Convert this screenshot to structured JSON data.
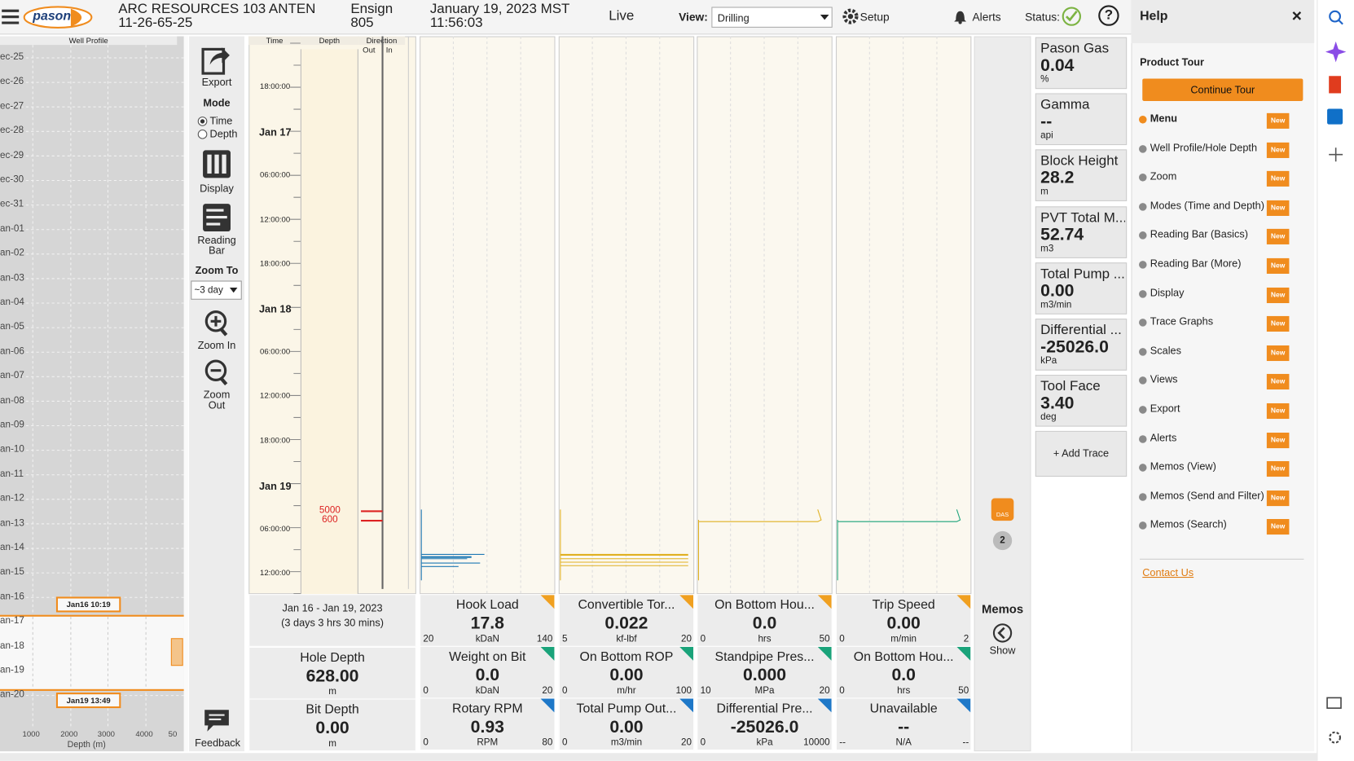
{
  "header": {
    "logo": "pason",
    "well": "ARC RESOURCES 103 ANTEN 11-26-65-25",
    "rig": "Ensign 805",
    "datetime": "January 19, 2023 MST 11:56:03",
    "mode": "Live",
    "view_label": "View:",
    "view": "Drilling",
    "setup": "Setup",
    "alerts": "Alerts",
    "status": "Status:",
    "help_icon": "?"
  },
  "well_profile": {
    "title": "Well Profile",
    "dates": [
      "ec-25",
      "ec-26",
      "ec-27",
      "ec-28",
      "ec-29",
      "ec-30",
      "ec-31",
      "an-01",
      "an-02",
      "an-03",
      "an-04",
      "an-05",
      "an-06",
      "an-07",
      "an-08",
      "an-09",
      "an-10",
      "an-11",
      "an-12",
      "an-13",
      "an-14",
      "an-15",
      "an-16",
      "an-17",
      "an-18",
      "an-19",
      "an-20"
    ],
    "x_ticks": [
      "1000",
      "2000",
      "3000",
      "4000",
      "50"
    ],
    "x_label": "Depth (m)",
    "markers": [
      "Jan16 10:19",
      "Jan19 13:49"
    ]
  },
  "toolbar": {
    "export": "Export",
    "mode": "Mode",
    "mode_options": [
      "Time",
      "Depth"
    ],
    "display": "Display",
    "reading_bar": "Reading Bar",
    "zoom_to": "Zoom To",
    "zoom_value": "~3 day",
    "zoom_in": "Zoom In",
    "zoom_out": "Zoom Out",
    "feedback": "Feedback"
  },
  "track": {
    "headers": [
      "Time",
      "Depth",
      "Direction"
    ],
    "direction_sub": [
      "Out",
      "In"
    ],
    "time_labels": [
      "18:00:00",
      "Jan 17",
      "06:00:00",
      "12:00:00",
      "18:00:00",
      "Jan 18",
      "06:00:00",
      "12:00:00",
      "18:00:00",
      "Jan 19",
      "06:00:00",
      "12:00:00"
    ],
    "depth_labels": [
      "5000",
      "600"
    ]
  },
  "summary": {
    "range": "Jan 16 - Jan 19, 2023",
    "duration": "(3 days 3 hrs 30 mins)",
    "readouts": [
      {
        "name": "Hole Depth",
        "value": "628.00",
        "unit": "m"
      },
      {
        "name": "Bit Depth",
        "value": "0.00",
        "unit": "m"
      }
    ]
  },
  "readouts": [
    [
      {
        "name": "Hook Load",
        "value": "17.8",
        "unit": "kDaN",
        "min": "20",
        "max": "140",
        "color": "#f0a020"
      },
      {
        "name": "Weight on Bit",
        "value": "0.0",
        "unit": "kDaN",
        "min": "0",
        "max": "20",
        "color": "#1aa37a"
      },
      {
        "name": "Rotary RPM",
        "value": "0.93",
        "unit": "RPM",
        "min": "0",
        "max": "80",
        "color": "#1e78c8"
      }
    ],
    [
      {
        "name": "Convertible Tor...",
        "value": "0.022",
        "unit": "kf-lbf",
        "min": "5",
        "max": "20",
        "color": "#f0a020"
      },
      {
        "name": "On Bottom ROP",
        "value": "0.00",
        "unit": "m/hr",
        "min": "0",
        "max": "100",
        "color": "#1aa37a"
      },
      {
        "name": "Total Pump Out...",
        "value": "0.00",
        "unit": "m3/min",
        "min": "0",
        "max": "20",
        "color": "#1e78c8"
      }
    ],
    [
      {
        "name": "On Bottom Hou...",
        "value": "0.0",
        "unit": "hrs",
        "min": "0",
        "max": "50",
        "color": "#f0a020"
      },
      {
        "name": "Standpipe Pres...",
        "value": "0.000",
        "unit": "MPa",
        "min": "10",
        "max": "20",
        "color": "#1aa37a"
      },
      {
        "name": "Differential Pre...",
        "value": "-25026.0",
        "unit": "kPa",
        "min": "0",
        "max": "10000",
        "color": "#1e78c8"
      }
    ],
    [
      {
        "name": "Trip Speed",
        "value": "0.00",
        "unit": "m/min",
        "min": "0",
        "max": "2",
        "color": "#f0a020"
      },
      {
        "name": "On Bottom Hou...",
        "value": "0.0",
        "unit": "hrs",
        "min": "0",
        "max": "50",
        "color": "#1aa37a"
      },
      {
        "name": "Unavailable",
        "value": "--",
        "unit": "N/A",
        "min": "--",
        "max": "--",
        "color": "#1e78c8"
      }
    ]
  ],
  "memos": {
    "icon": "DAS",
    "badge": "2",
    "title": "Memos",
    "action": "Show"
  },
  "cards": [
    {
      "name": "Pason Gas",
      "value": "0.04",
      "unit": "%"
    },
    {
      "name": "Gamma",
      "value": "--",
      "unit": "api"
    },
    {
      "name": "Block Height",
      "value": "28.2",
      "unit": "m"
    },
    {
      "name": "PVT Total M...",
      "value": "52.74",
      "unit": "m3"
    },
    {
      "name": "Total Pump ...",
      "value": "0.00",
      "unit": "m3/min"
    },
    {
      "name": "Differential ...",
      "value": "-25026.0",
      "unit": "kPa"
    },
    {
      "name": "Tool Face",
      "value": "3.40",
      "unit": "deg"
    }
  ],
  "add_trace": "+ Add Trace",
  "help": {
    "title": "Help",
    "close": "×",
    "section": "Product Tour",
    "button": "Continue Tour",
    "items": [
      "Menu",
      "Well Profile/Hole Depth",
      "Zoom",
      "Modes (Time and Depth)",
      "Reading Bar (Basics)",
      "Reading Bar (More)",
      "Display",
      "Trace Graphs",
      "Scales",
      "Views",
      "Export",
      "Alerts",
      "Memos (View)",
      "Memos (Send and Filter)",
      "Memos (Search)"
    ],
    "badge": "New",
    "contact": "Contact Us"
  }
}
